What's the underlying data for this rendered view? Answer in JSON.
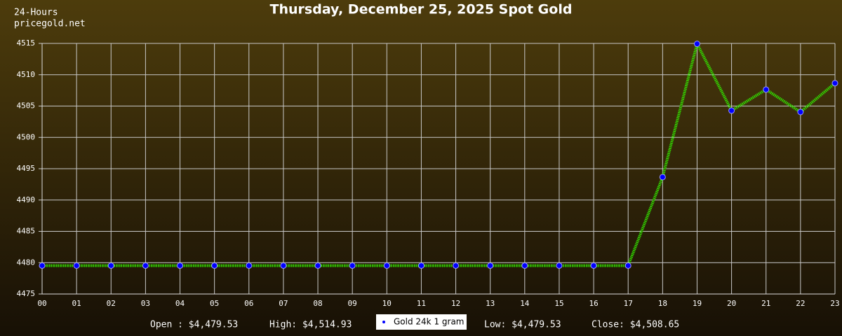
{
  "chart_data": {
    "type": "line",
    "title": "Thursday, December 25, 2025 Spot Gold",
    "period": "24-Hours",
    "source": "pricegold.net",
    "categories": [
      "00",
      "01",
      "02",
      "03",
      "04",
      "05",
      "06",
      "07",
      "08",
      "09",
      "10",
      "11",
      "12",
      "13",
      "14",
      "15",
      "16",
      "17",
      "18",
      "19",
      "20",
      "21",
      "22",
      "23"
    ],
    "series": [
      {
        "name": "Gold 24k 1 gram",
        "color": "#33dd00",
        "marker_color": "#0000ff",
        "values": [
          4479.53,
          4479.53,
          4479.53,
          4479.53,
          4479.53,
          4479.53,
          4479.53,
          4479.53,
          4479.53,
          4479.53,
          4479.53,
          4479.53,
          4479.53,
          4479.53,
          4479.53,
          4479.53,
          4479.53,
          4479.53,
          4493.66,
          4514.93,
          4504.27,
          4507.63,
          4504.05,
          4508.65
        ]
      }
    ],
    "ylim": [
      4475,
      4515
    ],
    "yticks": [
      4475,
      4480,
      4485,
      4490,
      4495,
      4500,
      4505,
      4510,
      4515
    ],
    "grid": true,
    "summary": [
      "Open : $4,479.53",
      "High: $4,514.93",
      "Low: $4,479.53",
      "Close: $4,508.65"
    ]
  }
}
